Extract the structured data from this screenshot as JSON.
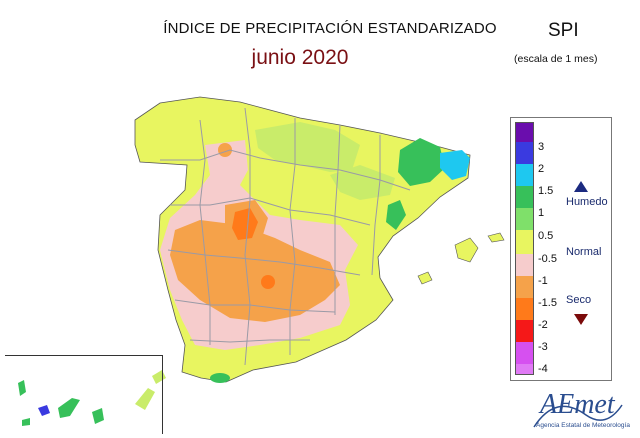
{
  "header": {
    "title": "ÍNDICE DE PRECIPITACIÓN ESTANDARIZADO",
    "subtitle": "junio 2020",
    "index_name": "SPI",
    "scale_note": "(escala de 1 mes)"
  },
  "legend": {
    "colors": [
      "#6a0dad",
      "#3a3ae0",
      "#1ec8f0",
      "#37c05a",
      "#7fe06a",
      "#e8f560",
      "#f6cccc",
      "#f5a24a",
      "#ff7a1a",
      "#f51818",
      "#d650f0",
      "#e07af5"
    ],
    "ticks": [
      "3",
      "2",
      "1.5",
      "1",
      "0.5",
      "-0.5",
      "-1",
      "-1.5",
      "-2",
      "-3",
      "-4"
    ],
    "categories": {
      "wet": "Humedo",
      "normal": "Normal",
      "dry": "Seco"
    }
  },
  "logo": {
    "name": "AEmet",
    "caption": "Agencia Estatal de Meteorología"
  },
  "map_colors": {
    "normal_yellow": "#e8f560",
    "light_green": "#c9ec6a",
    "green": "#37c05a",
    "cyan": "#1ec8f0",
    "pink": "#f6cccc",
    "orange": "#f5a24a",
    "dark_orange": "#ff7a1a",
    "border": "#9a9aa6"
  }
}
